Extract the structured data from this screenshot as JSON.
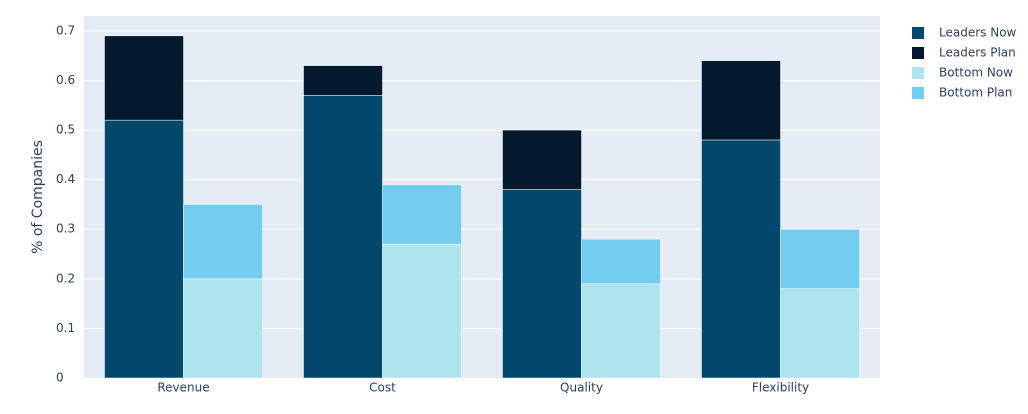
{
  "chart_data": {
    "type": "bar",
    "y_label": "% of Companies",
    "categories": [
      "Revenue",
      "Cost",
      "Quality",
      "Flexibility"
    ],
    "series": [
      {
        "name": "Leaders Now",
        "color": "#02476c",
        "values": [
          0.52,
          0.57,
          0.38,
          0.48
        ]
      },
      {
        "name": "Leaders Plan",
        "color": "#061a2d",
        "values": [
          0.17,
          0.06,
          0.12,
          0.16
        ]
      },
      {
        "name": "Bottom Now",
        "color": "#ade4ee",
        "values": [
          0.2,
          0.27,
          0.19,
          0.18
        ]
      },
      {
        "name": "Bottom Plan",
        "color": "#72cdee",
        "values": [
          0.15,
          0.12,
          0.09,
          0.12
        ]
      }
    ],
    "ylim": [
      0,
      0.73
    ],
    "yticks": [
      0,
      0.1,
      0.2,
      0.3,
      0.4,
      0.5,
      0.6,
      0.7
    ],
    "grid": true
  }
}
